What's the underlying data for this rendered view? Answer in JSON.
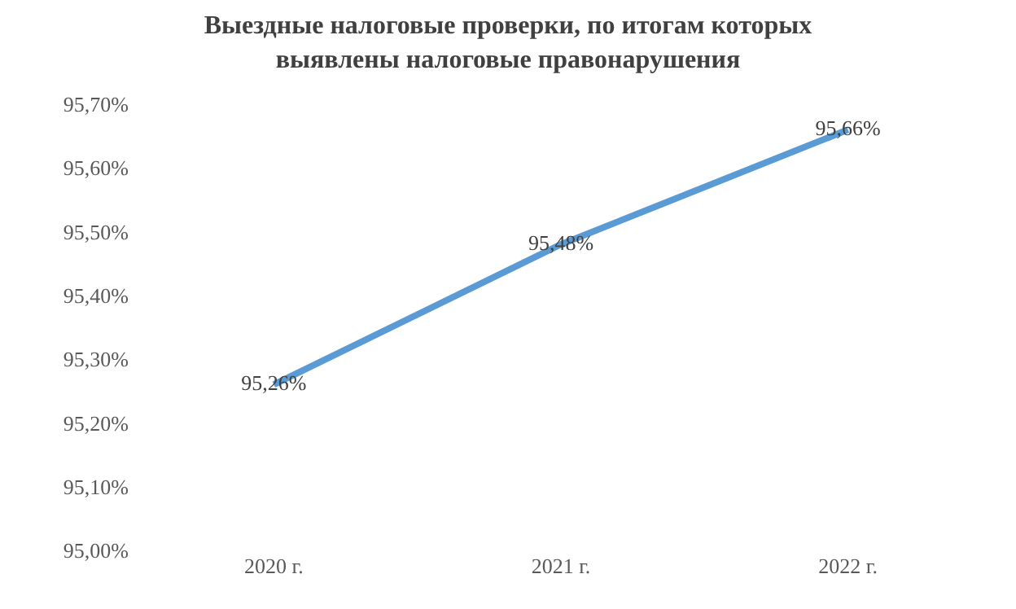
{
  "chart_data": {
    "type": "line",
    "title": "Выездные налоговые проверки, по итогам которых\nвыявлены налоговые правонарушения",
    "categories": [
      "2020 г.",
      "2021 г.",
      "2022 г."
    ],
    "series": [
      {
        "color": "#5b9bd5",
        "values": [
          95.26,
          95.48,
          95.66
        ],
        "value_labels": [
          "95,26%",
          "95,48%",
          "95,66%"
        ]
      }
    ],
    "ylim": [
      95.0,
      95.7
    ],
    "yticks": [
      {
        "value": 95.0,
        "label": "95,00%"
      },
      {
        "value": 95.1,
        "label": "95,10%"
      },
      {
        "value": 95.2,
        "label": "95,20%"
      },
      {
        "value": 95.3,
        "label": "95,30%"
      },
      {
        "value": 95.4,
        "label": "95,40%"
      },
      {
        "value": 95.5,
        "label": "95,50%"
      },
      {
        "value": 95.6,
        "label": "95,60%"
      },
      {
        "value": 95.7,
        "label": "95,70%"
      }
    ],
    "marker": "none",
    "line_style": "solid"
  }
}
